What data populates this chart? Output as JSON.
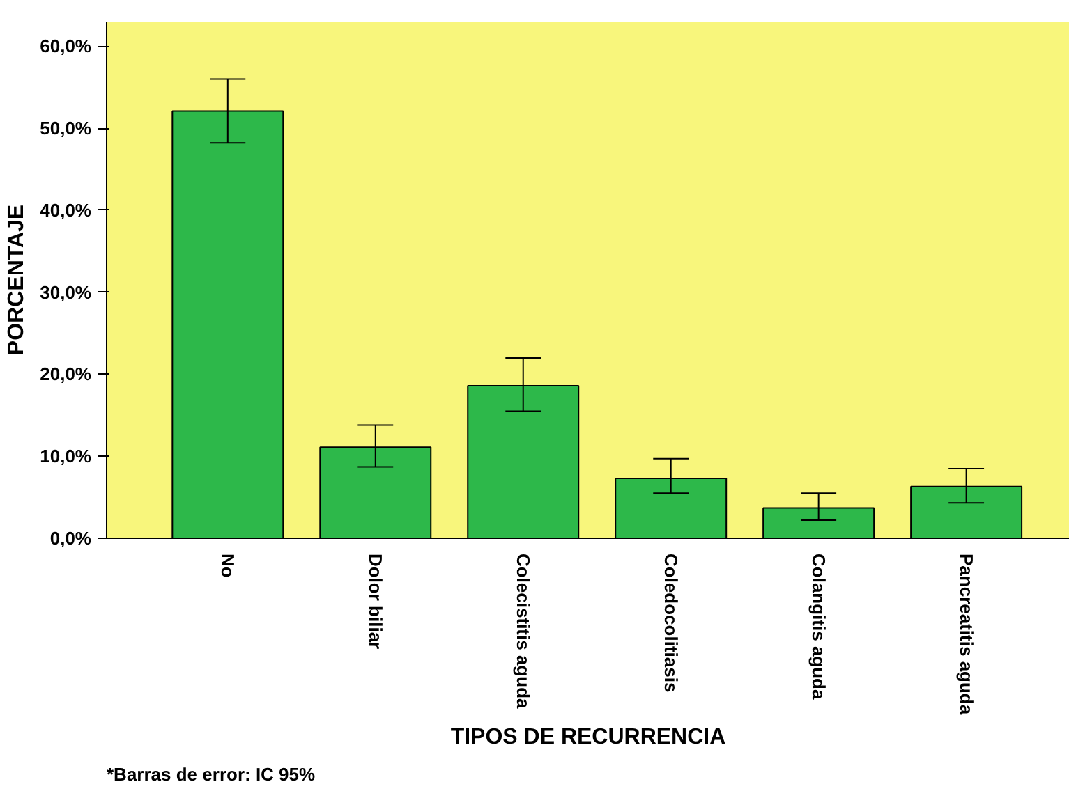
{
  "chart_data": {
    "type": "bar",
    "categories": [
      "No",
      "Dolor biliar",
      "Colecistitis aguda",
      "Coledocolitiasis",
      "Colangitis aguda",
      "Pancreatitis aguda"
    ],
    "values": [
      52.1,
      11.1,
      18.6,
      7.3,
      3.7,
      6.3
    ],
    "errors": [
      [
        48.2,
        56.0
      ],
      [
        8.7,
        13.8
      ],
      [
        15.5,
        22.0
      ],
      [
        5.5,
        9.7
      ],
      [
        2.2,
        5.5
      ],
      [
        4.3,
        8.5
      ]
    ],
    "color": "#2db84a",
    "ylim": [
      0,
      63
    ],
    "yticks": [
      {
        "value": 0,
        "label": "0,0%"
      },
      {
        "value": 10,
        "label": "10,0%"
      },
      {
        "value": 20,
        "label": "20,0%"
      },
      {
        "value": 30,
        "label": "30,0%"
      },
      {
        "value": 40,
        "label": "40,0%"
      },
      {
        "value": 50,
        "label": "50,0%"
      },
      {
        "value": 60,
        "label": "60,0%"
      }
    ],
    "xlabel": "TIPOS DE RECURRENCIA",
    "ylabel": "PORCENTAJE",
    "annotations": [
      "*Barras de error: IC 95%"
    ],
    "grid": false
  }
}
